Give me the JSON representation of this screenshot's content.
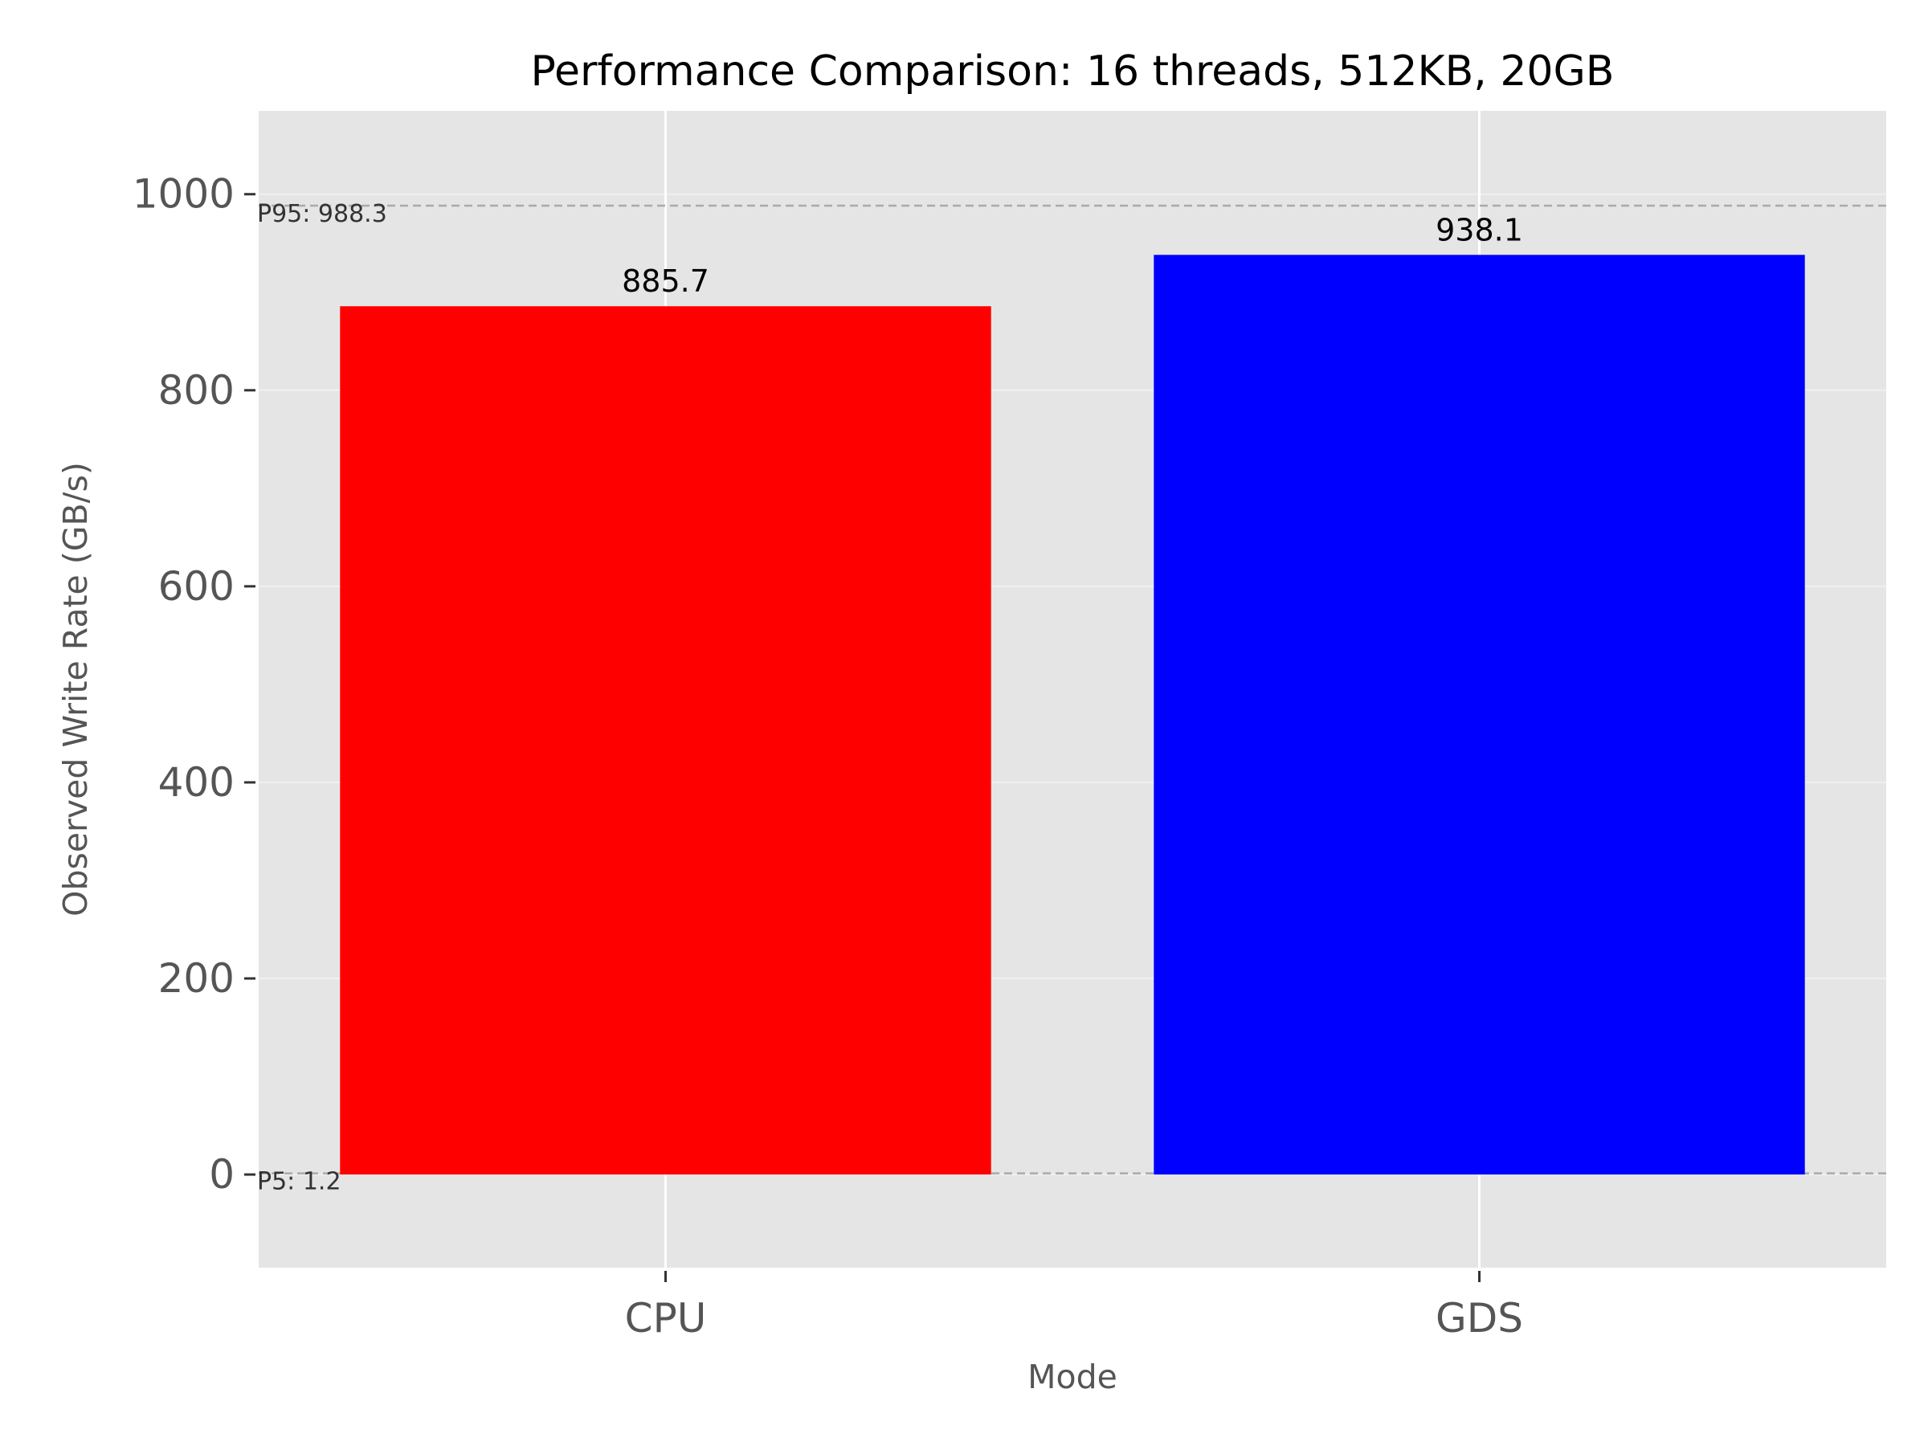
{
  "chart_data": {
    "type": "bar",
    "title": "Performance Comparison: 16 threads, 512KB, 20GB",
    "xlabel": "Mode",
    "ylabel": "Observed Write Rate (GB/s)",
    "categories": [
      "CPU",
      "GDS"
    ],
    "values": [
      885.7,
      938.1
    ],
    "data_labels": [
      "885.7",
      "938.1"
    ],
    "bar_colors": [
      "#ff0000",
      "#0000ff"
    ],
    "ylim": [
      -95,
      1085
    ],
    "yticks": [
      0,
      200,
      400,
      600,
      800,
      1000
    ],
    "grid": true,
    "background": "#e5e5e5",
    "reference_lines": [
      {
        "label": "P95: 988.3",
        "value": 988.3
      },
      {
        "label": "P5: 1.2",
        "value": 1.2
      }
    ]
  }
}
